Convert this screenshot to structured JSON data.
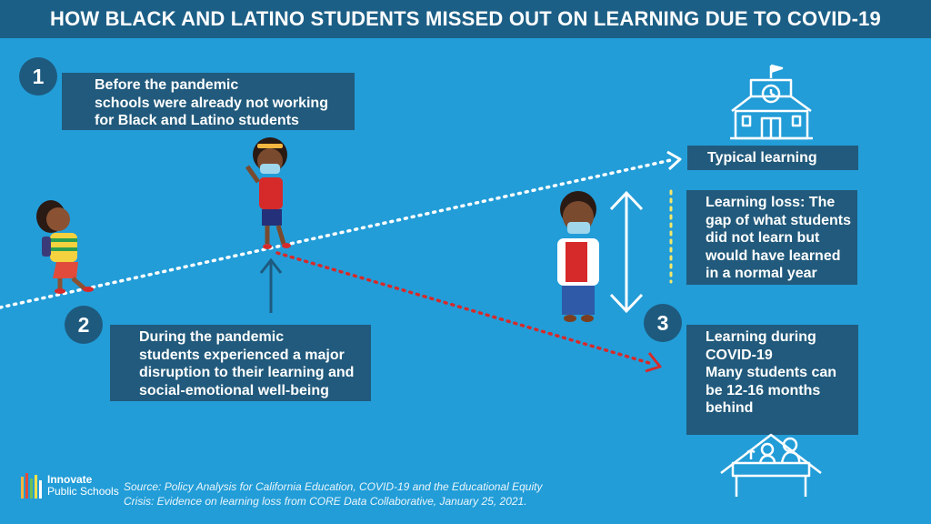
{
  "title": "HOW BLACK AND LATINO STUDENTS MISSED OUT ON LEARNING DUE TO COVID-19",
  "steps": [
    {
      "number": "1",
      "lines": [
        "Before the pandemic",
        "schools were already not working",
        "for Black and Latino students"
      ]
    },
    {
      "number": "2",
      "lines": [
        "During the pandemic",
        "students experienced a major",
        "disruption to their learning and",
        "social-emotional well-being"
      ]
    },
    {
      "number": "3",
      "lines": [
        "Learning during",
        "COVID-19",
        "Many students can",
        "be 12-16 months",
        "behind"
      ]
    }
  ],
  "typical_learning": "Typical learning",
  "learning_loss": [
    "Learning loss: The",
    "gap of what students",
    "did not learn but",
    "would have learned",
    "in a normal year"
  ],
  "source": [
    "Source: Policy Analysis for California Education, COVID-19 and the Educational Equity",
    "Crisis: Evidence on learning loss from CORE Data Collaborative, January 25, 2021."
  ],
  "logo": {
    "line1": "Innovate",
    "line2": "Public Schools"
  },
  "colors": {
    "background": "#229dd8",
    "title_bar": "#1c5f86",
    "box": "#215a7c",
    "typical_line": "#ffffff",
    "covid_line": "#d62a2a",
    "gap_dotted": "#f4e86a"
  }
}
